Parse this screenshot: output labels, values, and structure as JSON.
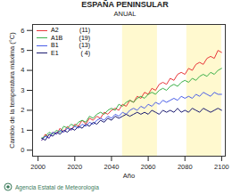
{
  "chart_data": {
    "type": "line",
    "title": "ESPAÑA PENINSULAR",
    "subtitle": "ANUAL",
    "x_label": "Año",
    "y_label": "Cambio de la temperatura máxima (°C)",
    "caption": "Agencia Estatal de Meteorología",
    "legend": "top-left",
    "x": [
      2002,
      2004,
      2006,
      2008,
      2010,
      2012,
      2014,
      2016,
      2018,
      2020,
      2022,
      2024,
      2026,
      2028,
      2030,
      2032,
      2034,
      2036,
      2038,
      2040,
      2042,
      2044,
      2046,
      2048,
      2050,
      2052,
      2054,
      2056,
      2058,
      2060,
      2062,
      2064,
      2066,
      2068,
      2070,
      2072,
      2074,
      2076,
      2078,
      2080,
      2082,
      2084,
      2086,
      2088,
      2090,
      2092,
      2094,
      2096,
      2098,
      2100
    ],
    "series": [
      {
        "name": "A2",
        "legend_label": "(11)",
        "color": "#e8383b",
        "values": [
          0.5,
          0.8,
          0.6,
          0.9,
          0.8,
          1.1,
          0.9,
          1.2,
          1.0,
          1.3,
          1.2,
          1.5,
          1.3,
          1.6,
          1.5,
          1.7,
          1.6,
          1.9,
          1.8,
          2.0,
          2.1,
          2.0,
          2.3,
          2.2,
          2.5,
          2.4,
          2.7,
          2.6,
          2.9,
          2.8,
          3.1,
          3.0,
          3.3,
          3.4,
          3.3,
          3.6,
          3.5,
          3.8,
          3.9,
          3.8,
          4.1,
          4.0,
          4.3,
          4.4,
          4.3,
          4.6,
          4.7,
          4.6,
          5.0,
          4.9
        ]
      },
      {
        "name": "A1B",
        "legend_label": "(19)",
        "color": "#3cb04a",
        "values": [
          0.6,
          0.7,
          0.9,
          0.8,
          1.0,
          0.9,
          1.2,
          1.1,
          1.3,
          1.2,
          1.4,
          1.5,
          1.4,
          1.7,
          1.6,
          1.8,
          1.9,
          1.8,
          2.0,
          2.1,
          2.0,
          2.3,
          2.2,
          2.4,
          2.5,
          2.4,
          2.6,
          2.7,
          2.6,
          2.8,
          2.9,
          2.8,
          3.0,
          3.1,
          3.0,
          3.2,
          3.3,
          3.2,
          3.4,
          3.5,
          3.4,
          3.6,
          3.5,
          3.7,
          3.8,
          3.7,
          3.9,
          3.8,
          4.0,
          4.1
        ]
      },
      {
        "name": "B1",
        "legend_label": "(13)",
        "color": "#4a5ee8",
        "values": [
          0.5,
          0.7,
          0.6,
          0.9,
          0.8,
          1.0,
          0.9,
          1.1,
          1.0,
          1.2,
          1.1,
          1.3,
          1.2,
          1.4,
          1.3,
          1.5,
          1.6,
          1.5,
          1.7,
          1.6,
          1.8,
          1.7,
          1.9,
          1.8,
          2.0,
          2.1,
          2.0,
          2.2,
          2.1,
          2.3,
          2.2,
          2.4,
          2.3,
          2.5,
          2.4,
          2.5,
          2.6,
          2.5,
          2.7,
          2.6,
          2.7,
          2.6,
          2.8,
          2.7,
          2.9,
          2.8,
          2.7,
          2.9,
          2.8,
          2.8
        ]
      },
      {
        "name": "E1",
        "legend_label": "( 4)",
        "color": "#1a1a70",
        "values": [
          0.6,
          0.5,
          0.8,
          0.7,
          0.9,
          0.8,
          1.0,
          0.9,
          1.1,
          1.0,
          1.2,
          1.1,
          1.3,
          1.2,
          1.4,
          1.3,
          1.5,
          1.4,
          1.6,
          1.5,
          1.7,
          1.6,
          1.7,
          1.8,
          1.7,
          1.8,
          1.9,
          1.8,
          1.9,
          1.8,
          2.0,
          1.9,
          1.8,
          2.0,
          1.9,
          2.0,
          1.9,
          2.1,
          1.9,
          2.0,
          1.9,
          2.1,
          2.0,
          1.9,
          2.1,
          2.0,
          1.9,
          2.0,
          2.1,
          2.0
        ]
      }
    ],
    "shaded_periods": [
      [
        2046,
        2065
      ],
      [
        2081,
        2100
      ]
    ],
    "xlim": [
      1997,
      2102
    ],
    "xticks": [
      2000,
      2020,
      2040,
      2060,
      2080,
      2100
    ],
    "ylim": [
      -0.3,
      6.3
    ],
    "yticks": [
      0,
      1,
      2,
      3,
      4,
      5,
      6
    ],
    "grid": false
  }
}
